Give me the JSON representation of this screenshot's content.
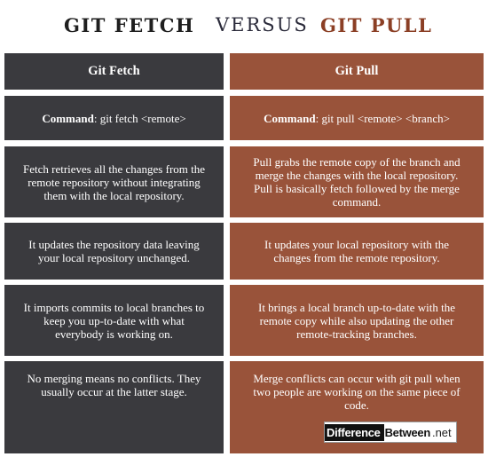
{
  "title": {
    "left": "GIT FETCH",
    "middle": "VERSUS",
    "right": "GIT PULL"
  },
  "columns": {
    "left_header": "Git Fetch",
    "right_header": "Git Pull"
  },
  "command_row": {
    "left_label": "Command",
    "left_value": ": git fetch <remote>",
    "right_label": "Command",
    "right_value": ": git pull <remote> <branch>"
  },
  "rows": [
    {
      "left": "Fetch retrieves all the changes from the remote repository without integrating them with the local repository.",
      "right": "Pull grabs the remote copy of the branch and merge the changes with the local repository. Pull is basically fetch followed by the merge command."
    },
    {
      "left": "It updates the repository data leaving your local repository unchanged.",
      "right": "It updates your local repository with the changes from the remote repository."
    },
    {
      "left": "It imports commits to local branches to keep you up-to-date with what everybody is working on.",
      "right": "It brings a local branch up-to-date with the remote copy while also updating the other remote-tracking branches."
    },
    {
      "left": "No merging means no conflicts. They usually occur at the latter stage.",
      "right": "Merge conflicts can occur with git pull when two people are working on the same piece of code."
    }
  ],
  "watermark": {
    "part1": "Difference",
    "part2": "Between",
    "part3": ".net"
  },
  "colors": {
    "left_column": "#3a3a3e",
    "right_column": "#99533a",
    "title_accent": "#8b3f25"
  }
}
